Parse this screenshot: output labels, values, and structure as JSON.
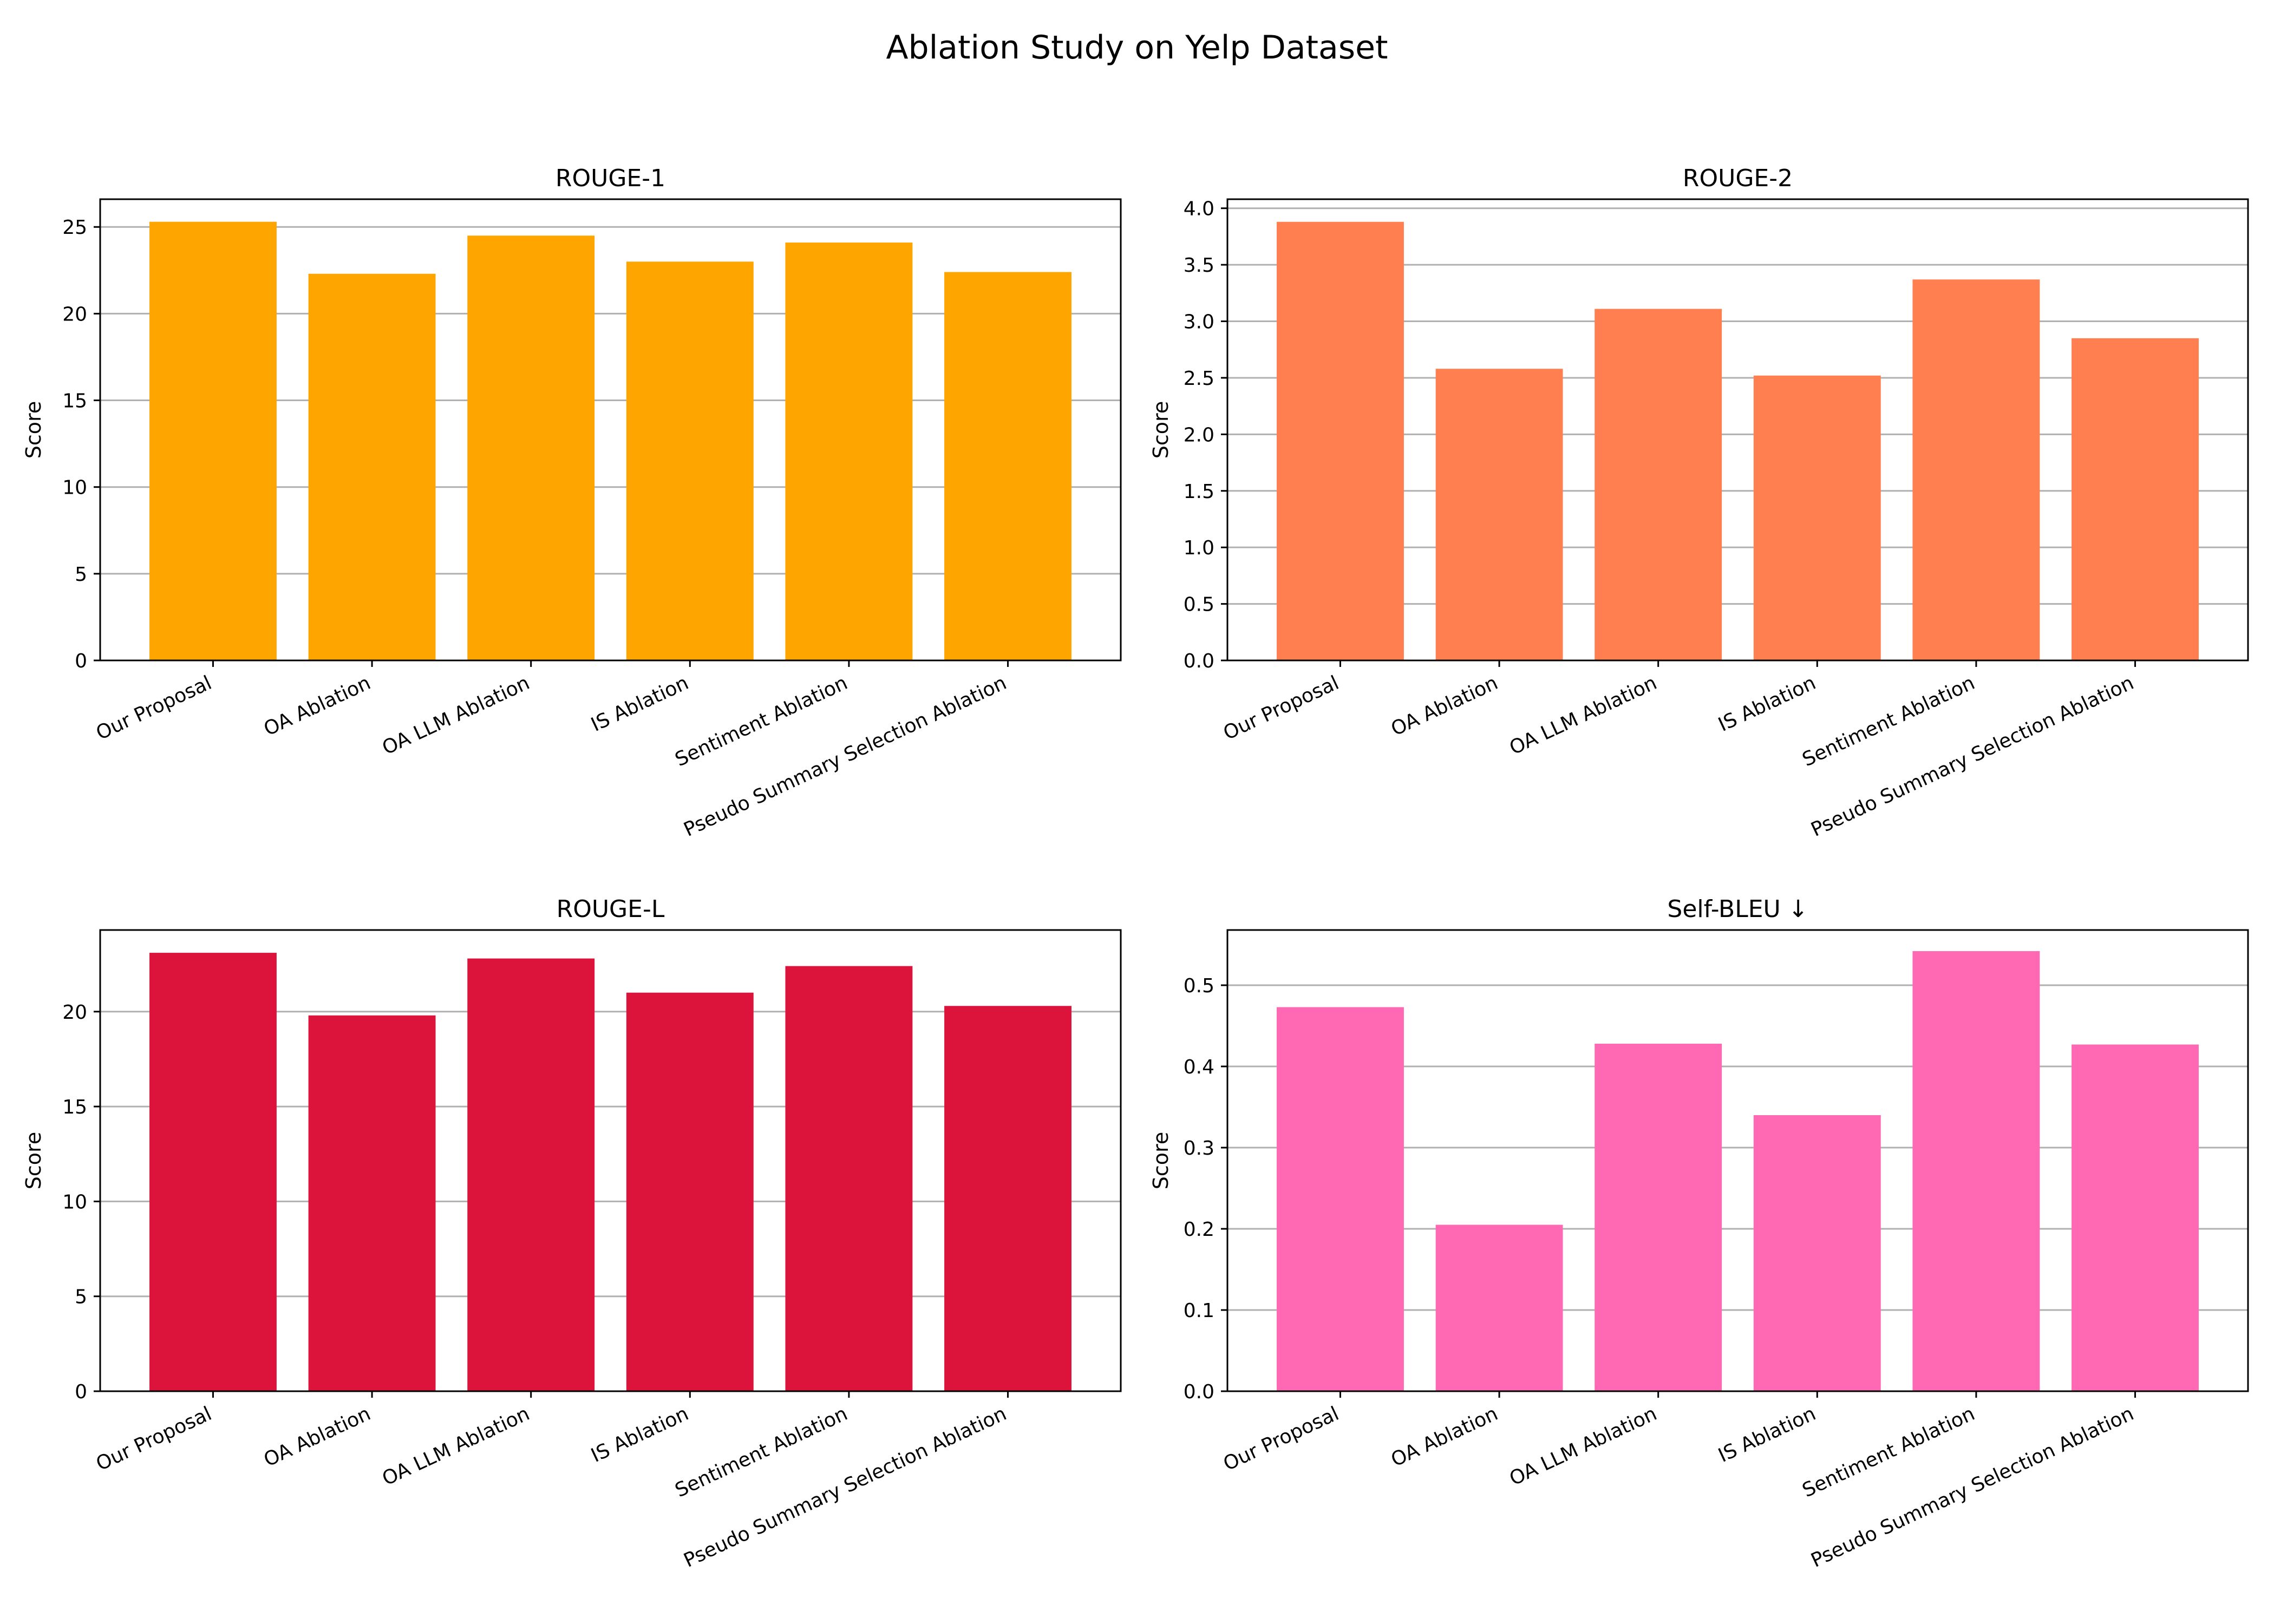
{
  "title": "Ablation Study on Yelp Dataset",
  "chart_data": [
    {
      "type": "bar",
      "title": "ROUGE-1",
      "ylabel": "Score",
      "categories": [
        "Our Proposal",
        "OA Ablation",
        "OA LLM Ablation",
        "IS Ablation",
        "Sentiment Ablation",
        "Pseudo Summary Selection Ablation"
      ],
      "values": [
        25.3,
        22.3,
        24.5,
        23.0,
        24.1,
        22.4
      ],
      "ylim": [
        0,
        26.6
      ],
      "yticks": [
        0,
        5,
        10,
        15,
        20,
        25
      ],
      "ytick_labels": [
        "0",
        "5",
        "10",
        "15",
        "20",
        "25"
      ],
      "color": "#FFA500",
      "grid": "y"
    },
    {
      "type": "bar",
      "title": "ROUGE-2",
      "ylabel": "Score",
      "categories": [
        "Our Proposal",
        "OA Ablation",
        "OA LLM Ablation",
        "IS Ablation",
        "Sentiment Ablation",
        "Pseudo Summary Selection Ablation"
      ],
      "values": [
        3.88,
        2.58,
        3.11,
        2.52,
        3.37,
        2.85
      ],
      "ylim": [
        0,
        4.08
      ],
      "yticks": [
        0,
        0.5,
        1.0,
        1.5,
        2.0,
        2.5,
        3.0,
        3.5,
        4.0
      ],
      "ytick_labels": [
        "0.0",
        "0.5",
        "1.0",
        "1.5",
        "2.0",
        "2.5",
        "3.0",
        "3.5",
        "4.0"
      ],
      "color": "#FF7F50",
      "grid": "y"
    },
    {
      "type": "bar",
      "title": "ROUGE-L",
      "ylabel": "Score",
      "categories": [
        "Our Proposal",
        "OA Ablation",
        "OA LLM Ablation",
        "IS Ablation",
        "Sentiment Ablation",
        "Pseudo Summary Selection Ablation"
      ],
      "values": [
        23.1,
        19.8,
        22.8,
        21.0,
        22.4,
        20.3
      ],
      "ylim": [
        0,
        24.3
      ],
      "yticks": [
        0,
        5,
        10,
        15,
        20
      ],
      "ytick_labels": [
        "0",
        "5",
        "10",
        "15",
        "20"
      ],
      "color": "#DC143C",
      "grid": "y"
    },
    {
      "type": "bar",
      "title": "Self-BLEU ↓",
      "ylabel": "Score",
      "categories": [
        "Our Proposal",
        "OA Ablation",
        "OA LLM Ablation",
        "IS Ablation",
        "Sentiment Ablation",
        "Pseudo Summary Selection Ablation"
      ],
      "values": [
        0.473,
        0.205,
        0.428,
        0.34,
        0.542,
        0.427
      ],
      "ylim": [
        0,
        0.568
      ],
      "yticks": [
        0,
        0.1,
        0.2,
        0.3,
        0.4,
        0.5
      ],
      "ytick_labels": [
        "0.0",
        "0.1",
        "0.2",
        "0.3",
        "0.4",
        "0.5"
      ],
      "color": "#FF69B4",
      "grid": "y"
    }
  ]
}
